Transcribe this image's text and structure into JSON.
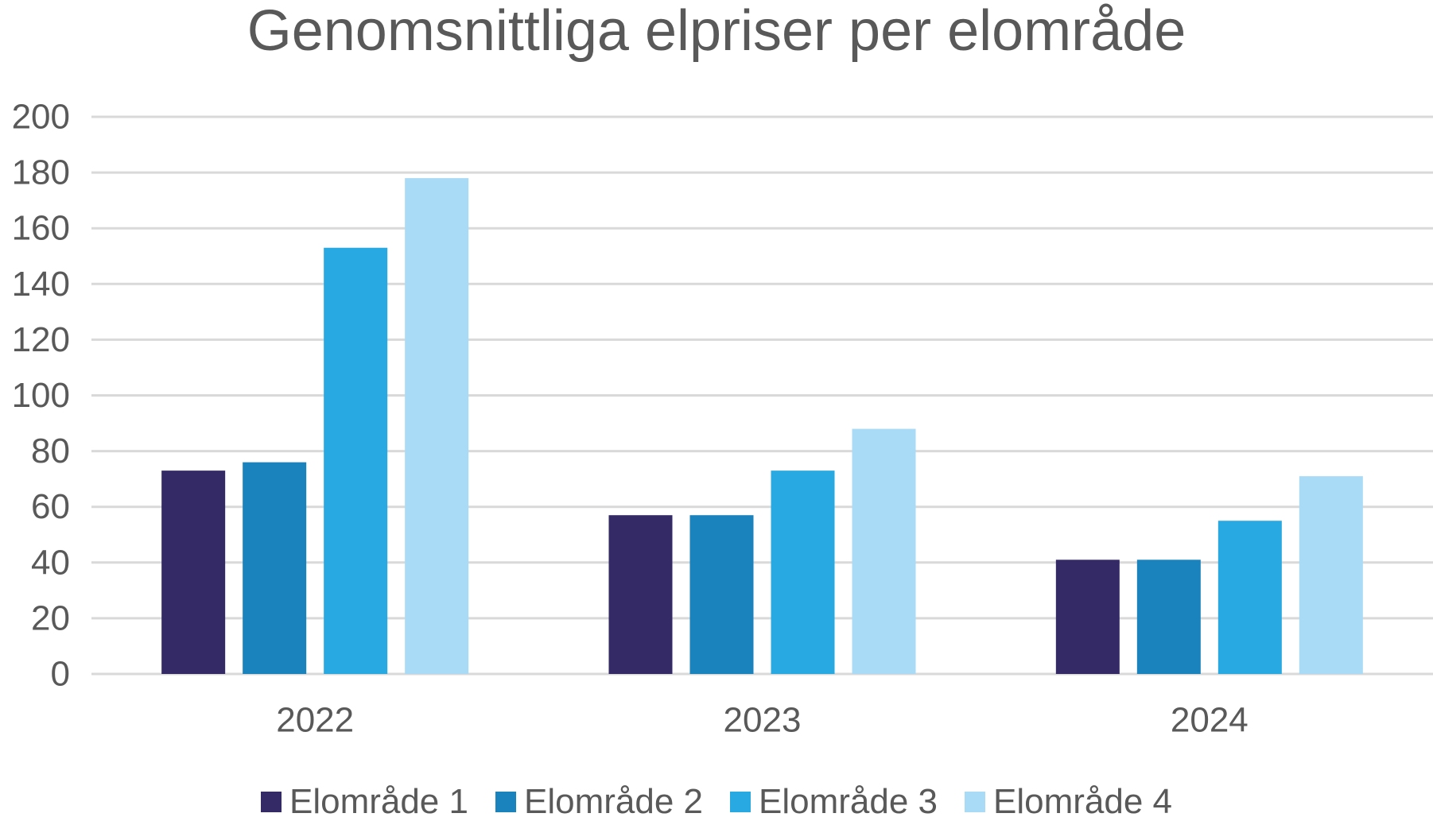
{
  "chart_data": {
    "type": "bar",
    "title": "Genomsnittliga elpriser per elområde",
    "categories": [
      "2022",
      "2023",
      "2024"
    ],
    "series": [
      {
        "name": "Elområde 1",
        "color": "#332a66",
        "values": [
          73,
          57,
          41
        ]
      },
      {
        "name": "Elområde 2",
        "color": "#1a82bd",
        "values": [
          76,
          57,
          41
        ]
      },
      {
        "name": "Elområde 3",
        "color": "#29a9e1",
        "values": [
          153,
          73,
          55
        ]
      },
      {
        "name": "Elområde 4",
        "color": "#a9dbf6",
        "values": [
          178,
          88,
          71
        ]
      }
    ],
    "ylim": [
      0,
      200
    ],
    "yticks": [
      "0",
      "20",
      "40",
      "60",
      "80",
      "100",
      "120",
      "140",
      "160",
      "180",
      "200"
    ],
    "grid": true,
    "legend": "bottom"
  }
}
